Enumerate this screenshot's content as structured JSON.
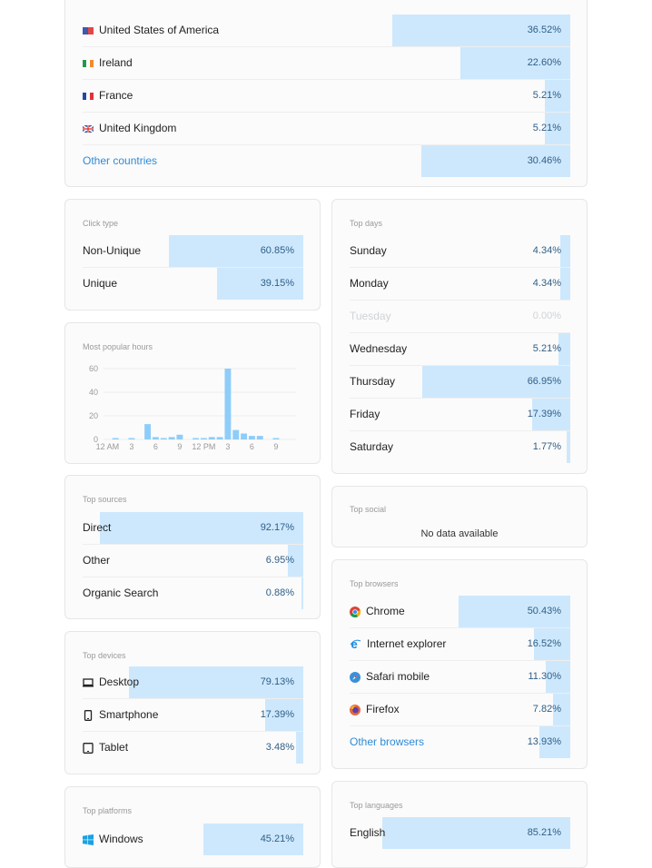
{
  "countries": {
    "rows": [
      {
        "label": "United States of America",
        "value": "36.52%",
        "pct": 36.52,
        "flag": "us-flag"
      },
      {
        "label": "Ireland",
        "value": "22.60%",
        "pct": 22.6,
        "flag": "ireland-flag"
      },
      {
        "label": "France",
        "value": "5.21%",
        "pct": 5.21,
        "flag": "france-flag"
      },
      {
        "label": "United Kingdom",
        "value": "5.21%",
        "pct": 5.21,
        "flag": "uk-flag"
      },
      {
        "label": "Other countries",
        "value": "30.46%",
        "pct": 30.46
      }
    ]
  },
  "click_type": {
    "title": "Click type",
    "rows": [
      {
        "label": "Non-Unique",
        "value": "60.85%",
        "pct": 60.85
      },
      {
        "label": "Unique",
        "value": "39.15%",
        "pct": 39.15
      }
    ]
  },
  "top_days": {
    "title": "Top days",
    "rows": [
      {
        "label": "Sunday",
        "value": "4.34%",
        "pct": 4.34
      },
      {
        "label": "Monday",
        "value": "4.34%",
        "pct": 4.34
      },
      {
        "label": "Tuesday",
        "value": "0.00%",
        "pct": 0
      },
      {
        "label": "Wednesday",
        "value": "5.21%",
        "pct": 5.21
      },
      {
        "label": "Thursday",
        "value": "66.95%",
        "pct": 66.95
      },
      {
        "label": "Friday",
        "value": "17.39%",
        "pct": 17.39
      },
      {
        "label": "Saturday",
        "value": "1.77%",
        "pct": 1.77
      }
    ]
  },
  "popular_hours": {
    "title": "Most popular hours"
  },
  "chart_data": {
    "type": "bar",
    "title": "Most popular hours",
    "categories": [
      "12 AM",
      "1",
      "2",
      "3",
      "4",
      "5",
      "6",
      "7",
      "8",
      "9",
      "10",
      "11",
      "12 PM",
      "1",
      "2",
      "3",
      "4",
      "5",
      "6",
      "7",
      "8",
      "9",
      "10",
      "11"
    ],
    "values": [
      0,
      1,
      0,
      1,
      0,
      13,
      2,
      1,
      2,
      4,
      0,
      1,
      1,
      2,
      2,
      60,
      8,
      5,
      3,
      3,
      0,
      1,
      0,
      0
    ],
    "xtick_labels": [
      "12 AM",
      "3",
      "6",
      "9",
      "12 PM",
      "3",
      "6",
      "9"
    ],
    "ytick_labels": [
      "0",
      "20",
      "40",
      "60"
    ],
    "ylim": [
      0,
      60
    ],
    "xlabel": "",
    "ylabel": "",
    "grid": true
  },
  "top_sources": {
    "title": "Top sources",
    "rows": [
      {
        "label": "Direct",
        "value": "92.17%",
        "pct": 92.17
      },
      {
        "label": "Other",
        "value": "6.95%",
        "pct": 6.95
      },
      {
        "label": "Organic Search",
        "value": "0.88%",
        "pct": 0.88
      }
    ]
  },
  "top_social": {
    "title": "Top social",
    "empty_text": "No data available"
  },
  "top_devices": {
    "title": "Top devices",
    "rows": [
      {
        "label": "Desktop",
        "value": "79.13%",
        "pct": 79.13,
        "icon": "desktop-icon"
      },
      {
        "label": "Smartphone",
        "value": "17.39%",
        "pct": 17.39,
        "icon": "smartphone-icon"
      },
      {
        "label": "Tablet",
        "value": "3.48%",
        "pct": 3.48,
        "icon": "tablet-icon"
      }
    ]
  },
  "top_browsers": {
    "title": "Top browsers",
    "rows": [
      {
        "label": "Chrome",
        "value": "50.43%",
        "pct": 50.43,
        "icon": "chrome-icon"
      },
      {
        "label": "Internet explorer",
        "value": "16.52%",
        "pct": 16.52,
        "icon": "internet-explorer-icon"
      },
      {
        "label": "Safari mobile",
        "value": "11.30%",
        "pct": 11.3,
        "icon": "safari-icon"
      },
      {
        "label": "Firefox",
        "value": "7.82%",
        "pct": 7.82,
        "icon": "firefox-icon"
      },
      {
        "label": "Other browsers",
        "value": "13.93%",
        "pct": 13.93
      }
    ]
  },
  "top_platforms": {
    "title": "Top platforms",
    "rows": [
      {
        "label": "Windows",
        "value": "45.21%",
        "pct": 45.21,
        "icon": "windows-icon"
      }
    ]
  },
  "top_languages": {
    "title": "Top languages",
    "rows": [
      {
        "label": "English",
        "value": "85.21%",
        "pct": 85.21
      }
    ]
  },
  "colors": {
    "bar": "#cde8fd",
    "link": "#2e8bd8",
    "chart_bar": "#8ecdf9"
  }
}
